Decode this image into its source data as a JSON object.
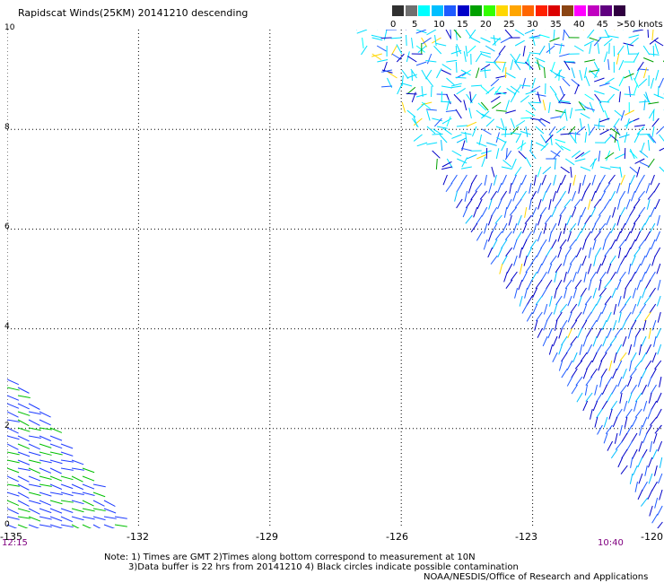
{
  "title": "Rapidscat Winds(25KM) 20141210 descending",
  "colorbar": {
    "labels": [
      "0",
      "5",
      "10",
      "15",
      "20",
      "25",
      "30",
      "35",
      "40",
      "45",
      ">50 knots"
    ],
    "colors": [
      "#303030",
      "#707070",
      "#00ffff",
      "#00bfff",
      "#1e5bff",
      "#0000c8",
      "#00a000",
      "#33ff00",
      "#ffd700",
      "#ffa500",
      "#ff6600",
      "#ff2000",
      "#dc0000",
      "#8b4513",
      "#ff00ff",
      "#c000c0",
      "#600080",
      "#300040"
    ]
  },
  "axes": {
    "x_ticks": [
      "-135",
      "-132",
      "-129",
      "-126",
      "-123",
      "-120"
    ],
    "y_ticks": [
      "10",
      "8",
      "6",
      "4",
      "2",
      "0"
    ],
    "x_range": [
      -135,
      -120
    ],
    "y_range": [
      0,
      10
    ],
    "grid": "dotted"
  },
  "times": {
    "left": "12:15",
    "right": "10:40"
  },
  "notes": {
    "line1": "Note: 1) Times are GMT 2)Times along bottom correspond to measurement at 10N",
    "line2": "3)Data buffer is 22 hrs from 20141210 4) Black circles indicate possible contamination"
  },
  "credit": "NOAA/NESDIS/Office of Research and Applications"
}
